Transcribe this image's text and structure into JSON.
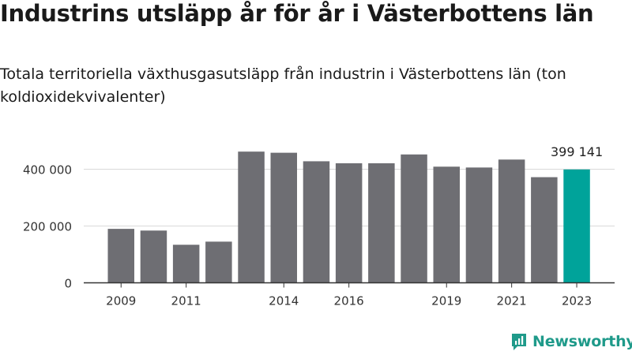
{
  "title": "Industrins utsläpp år för år i Västerbottens län",
  "subtitle": "Totala territoriella växthusgasutsläpp från industrin i Västerbottens län (ton koldioxidekvivalenter)",
  "brand": {
    "name": "Newsworthy",
    "icon": "newsworthy-logo-icon",
    "color": "#1f9a8a"
  },
  "colors": {
    "bar": "#6e6e73",
    "highlight": "#00a39a",
    "grid": "#d9d9d9",
    "axis": "#333333"
  },
  "chart_data": {
    "type": "bar",
    "categories": [
      "2009",
      "2010",
      "2011",
      "2012",
      "2013",
      "2014",
      "2015",
      "2016",
      "2017",
      "2018",
      "2019",
      "2020",
      "2021",
      "2022",
      "2023"
    ],
    "values": [
      190000,
      184000,
      134000,
      145000,
      462000,
      458000,
      428000,
      421000,
      421000,
      452000,
      409000,
      406000,
      434000,
      372000,
      399141
    ],
    "x_tick_labels": [
      "2009",
      "2011",
      "2014",
      "2016",
      "2019",
      "2021",
      "2023"
    ],
    "y_ticks": [
      0,
      200000,
      400000
    ],
    "y_tick_labels": [
      "0",
      "200 000",
      "400 000"
    ],
    "ylim": [
      0,
      480000
    ],
    "grid": true,
    "highlight": {
      "category": "2023",
      "label": "399 141"
    }
  }
}
